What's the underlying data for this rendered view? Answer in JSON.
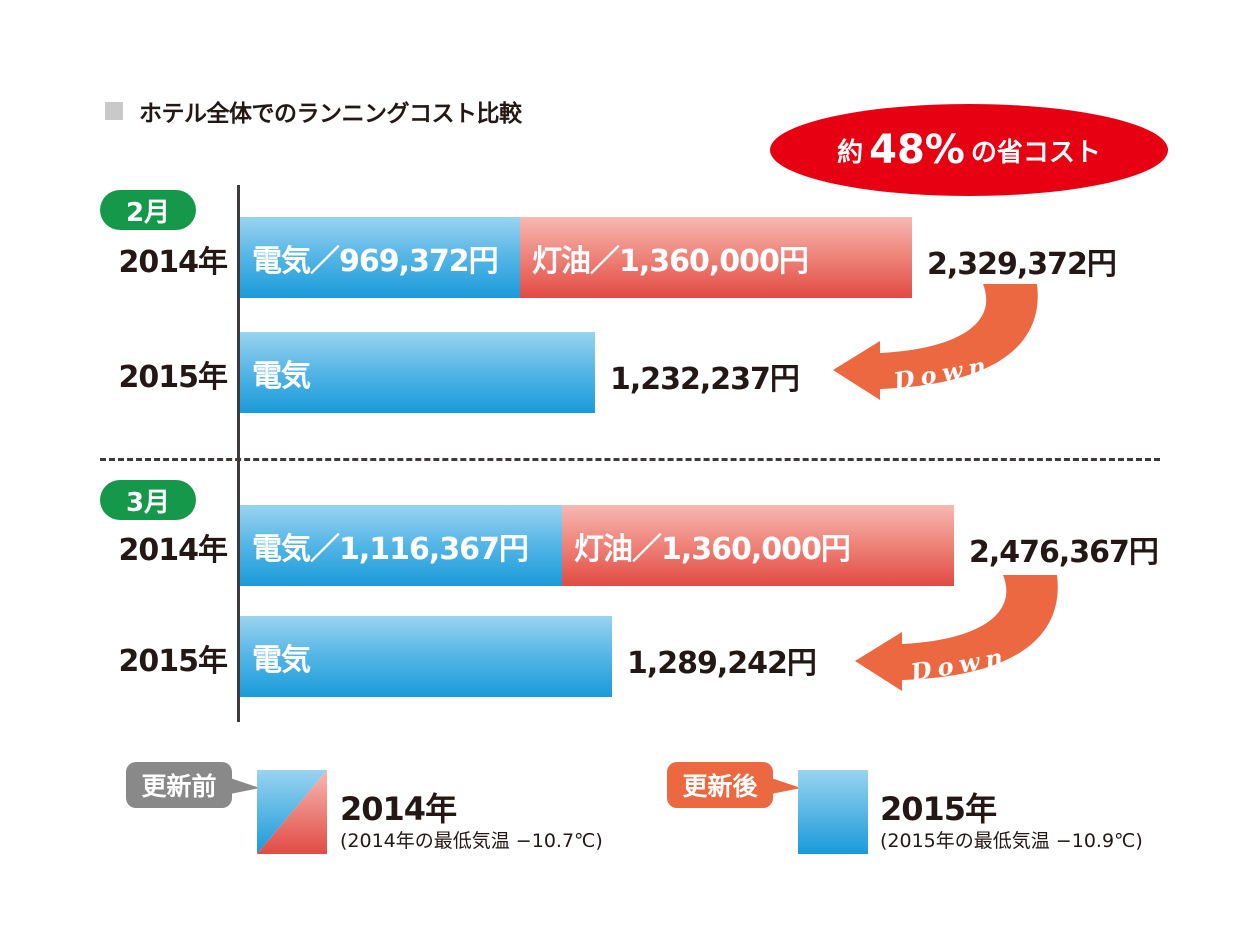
{
  "title": "ホテル全体でのランニングコスト比較",
  "savings": {
    "prefix": "約",
    "percent": "48%",
    "suffix": "の省コスト"
  },
  "chart_data": {
    "type": "bar",
    "orientation": "horizontal",
    "stacked": true,
    "title": "ホテル全体でのランニングコスト比較",
    "unit": "円",
    "groups": [
      {
        "month": "2月",
        "rows": [
          {
            "year": "2014年",
            "segments": [
              {
                "name": "電気",
                "value": 969372,
                "label": "電気／969,372円"
              },
              {
                "name": "灯油",
                "value": 1360000,
                "label": "灯油／1,360,000円"
              }
            ],
            "total": 2329372,
            "total_label": "2,329,372円"
          },
          {
            "year": "2015年",
            "segments": [
              {
                "name": "電気",
                "value": 1232237,
                "label": "電気"
              }
            ],
            "total": 1232237,
            "total_label": "1,232,237円"
          }
        ]
      },
      {
        "month": "3月",
        "rows": [
          {
            "year": "2014年",
            "segments": [
              {
                "name": "電気",
                "value": 1116367,
                "label": "電気／1,116,367円"
              },
              {
                "name": "灯油",
                "value": 1360000,
                "label": "灯油／1,360,000円"
              }
            ],
            "total": 2476367,
            "total_label": "2,476,367円"
          },
          {
            "year": "2015年",
            "segments": [
              {
                "name": "電気",
                "value": 1289242,
                "label": "電気"
              }
            ],
            "total": 1289242,
            "total_label": "1,289,242円"
          }
        ]
      }
    ],
    "arrow_label": "Down",
    "colors": {
      "電気": "#1a9ad9",
      "灯油": "#e24a44",
      "arrow": "#eb6840",
      "savings": "#e60012",
      "month_badge": "#16984b"
    }
  },
  "legend": {
    "before": {
      "callout": "更新前",
      "year": "2014年",
      "note": "(2014年の最低気温 −10.7℃)"
    },
    "after": {
      "callout": "更新後",
      "year": "2015年",
      "note": "(2015年の最低気温 −10.9℃)"
    }
  }
}
